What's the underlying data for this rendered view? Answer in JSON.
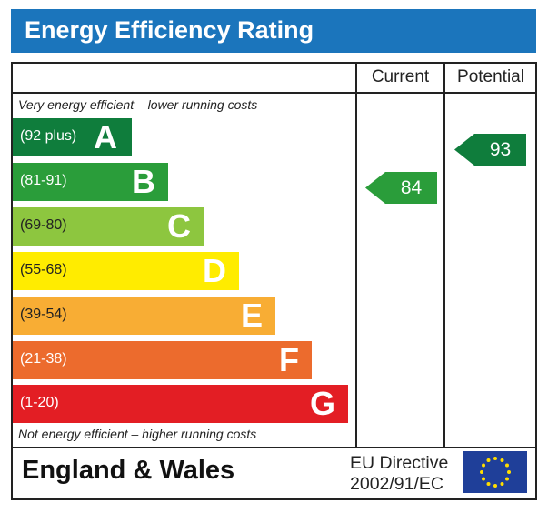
{
  "header": {
    "title": "Energy Efficiency Rating"
  },
  "columns": {
    "current": "Current",
    "potential": "Potential"
  },
  "notes": {
    "top": "Very energy efficient – lower running costs",
    "bottom": "Not energy efficient – higher running costs"
  },
  "footer": {
    "region": "England & Wales",
    "directive_line1": "EU Directive",
    "directive_line2": "2002/91/EC",
    "flag_icon": "eu-flag-icon"
  },
  "chart_data": {
    "type": "bar",
    "bands": [
      {
        "letter": "A",
        "range": "(92 plus)",
        "color": "#0f7d3c"
      },
      {
        "letter": "B",
        "range": "(81-91)",
        "color": "#2a9d3a"
      },
      {
        "letter": "C",
        "range": "(69-80)",
        "color": "#8dc63f"
      },
      {
        "letter": "D",
        "range": "(55-68)",
        "color": "#ffec00"
      },
      {
        "letter": "E",
        "range": "(39-54)",
        "color": "#f8ad34"
      },
      {
        "letter": "F",
        "range": "(21-38)",
        "color": "#ec6b2d"
      },
      {
        "letter": "G",
        "range": "(1-20)",
        "color": "#e31e24"
      }
    ],
    "current": {
      "value": "84",
      "band": "B",
      "color": "#2a9d3a"
    },
    "potential": {
      "value": "93",
      "band": "A",
      "color": "#0f7d3c"
    }
  }
}
